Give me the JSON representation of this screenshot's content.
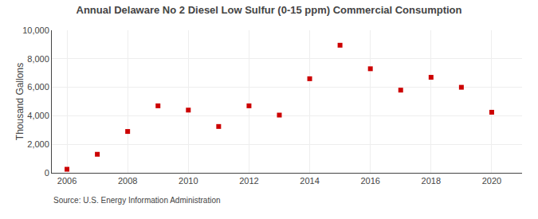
{
  "chart_data": {
    "type": "scatter",
    "title": "Annual Delaware No 2 Diesel Low Sulfur (0-15 ppm) Commercial Consumption",
    "ylabel": "Thousand Gallons",
    "annotations": [
      "Source: U.S. Energy Information Administration"
    ],
    "x": [
      2006,
      2007,
      2008,
      2009,
      2010,
      2011,
      2012,
      2013,
      2014,
      2015,
      2016,
      2017,
      2018,
      2019,
      2020
    ],
    "values": [
      250,
      1300,
      2900,
      4700,
      4400,
      3250,
      4700,
      4050,
      6600,
      8950,
      7300,
      5800,
      6700,
      6000,
      4250
    ],
    "color": "#cc0000",
    "marker": "square",
    "xlim": [
      2005.5,
      2021.0
    ],
    "xticks": [
      2006,
      2008,
      2010,
      2012,
      2014,
      2016,
      2018,
      2020
    ],
    "ylim": [
      0,
      10000
    ],
    "yticks": [
      0,
      {
        "value": 2000,
        "label": "2,000"
      },
      {
        "value": 4000,
        "label": "4,000"
      },
      {
        "value": 6000,
        "label": "6,000"
      },
      {
        "value": 8000,
        "label": "8,000"
      },
      {
        "value": 10000,
        "label": "10,000"
      }
    ],
    "grid": true
  }
}
